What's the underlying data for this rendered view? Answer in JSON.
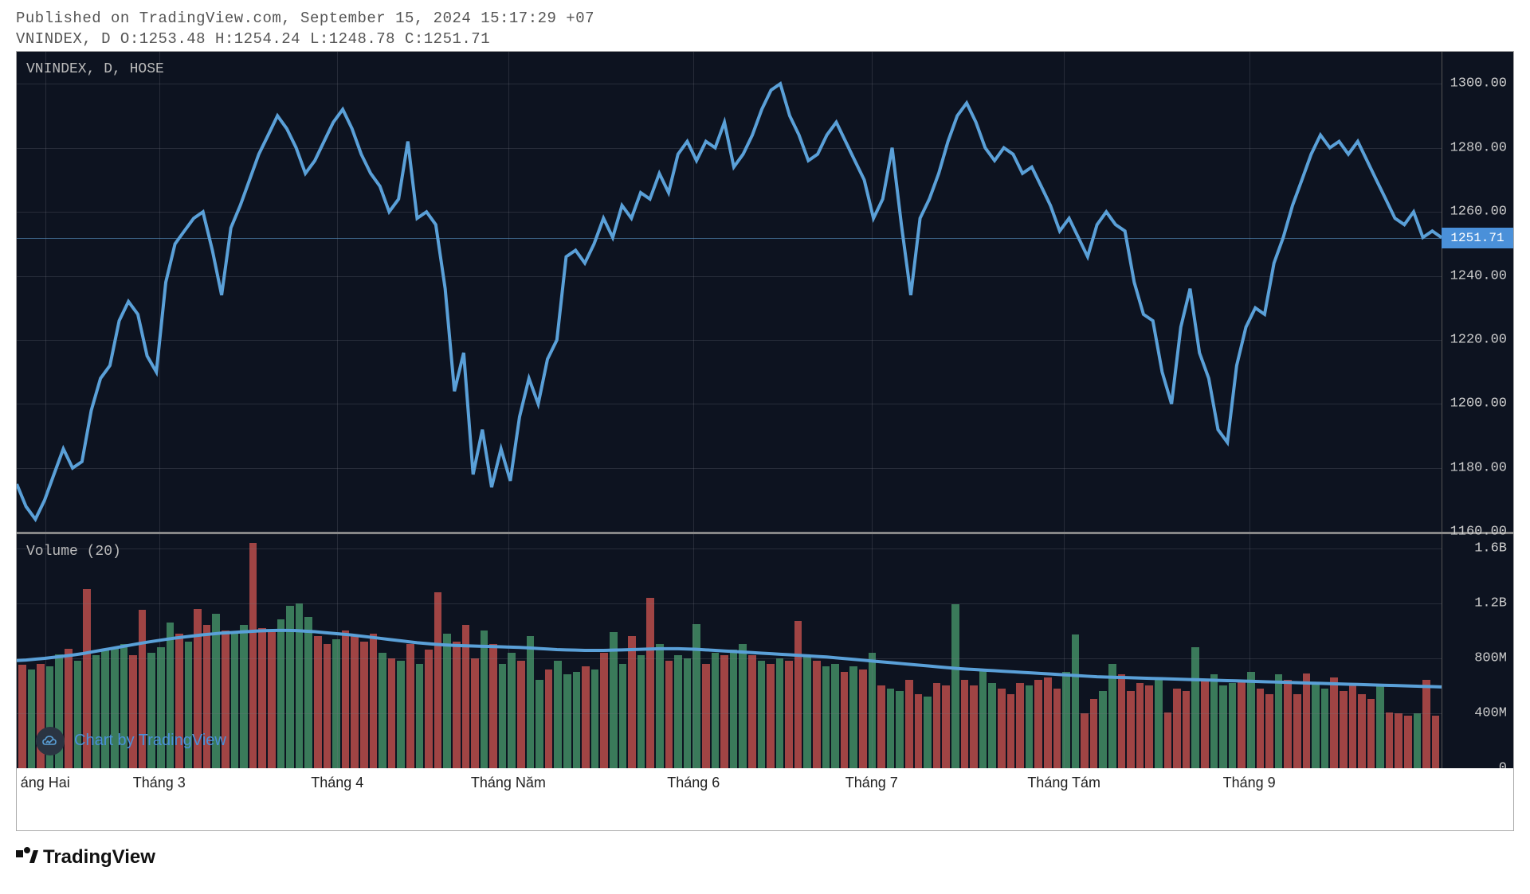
{
  "header": {
    "line1": "Published on TradingView.com, September 15, 2024 15:17:29 +07",
    "line2": "VNINDEX, D O:1253.48 H:1254.24 L:1248.78 C:1251.71"
  },
  "price_chart": {
    "label": "VNINDEX, D, HOSE",
    "type": "line",
    "line_color": "#5aa0d8",
    "line_width": 2,
    "background_color": "#0d1320",
    "grid_color": "rgba(120,120,130,0.25)",
    "ylim": [
      1160,
      1310
    ],
    "yticks": [
      1160,
      1180,
      1200,
      1220,
      1240,
      1260,
      1280,
      1300
    ],
    "ytick_labels": [
      "1160.00",
      "1180.00",
      "1200.00",
      "1220.00",
      "1240.00",
      "1260.00",
      "1280.00",
      "1300.00"
    ],
    "close_badge": {
      "value": "1251.71",
      "bg": "#4a90d9",
      "y": 1251.71
    },
    "data": [
      1175,
      1168,
      1164,
      1170,
      1178,
      1186,
      1180,
      1182,
      1198,
      1208,
      1212,
      1226,
      1232,
      1228,
      1215,
      1210,
      1238,
      1250,
      1254,
      1258,
      1260,
      1248,
      1234,
      1255,
      1262,
      1270,
      1278,
      1284,
      1290,
      1286,
      1280,
      1272,
      1276,
      1282,
      1288,
      1292,
      1286,
      1278,
      1272,
      1268,
      1260,
      1264,
      1282,
      1258,
      1260,
      1256,
      1236,
      1204,
      1216,
      1178,
      1192,
      1174,
      1186,
      1176,
      1196,
      1208,
      1200,
      1214,
      1220,
      1246,
      1248,
      1244,
      1250,
      1258,
      1252,
      1262,
      1258,
      1266,
      1264,
      1272,
      1266,
      1278,
      1282,
      1276,
      1282,
      1280,
      1288,
      1274,
      1278,
      1284,
      1292,
      1298,
      1300,
      1290,
      1284,
      1276,
      1278,
      1284,
      1288,
      1282,
      1276,
      1270,
      1258,
      1264,
      1280,
      1256,
      1234,
      1258,
      1264,
      1272,
      1282,
      1290,
      1294,
      1288,
      1280,
      1276,
      1280,
      1278,
      1272,
      1274,
      1268,
      1262,
      1254,
      1258,
      1252,
      1246,
      1256,
      1260,
      1256,
      1254,
      1238,
      1228,
      1226,
      1210,
      1200,
      1224,
      1236,
      1216,
      1208,
      1192,
      1188,
      1212,
      1224,
      1230,
      1228,
      1244,
      1252,
      1262,
      1270,
      1278,
      1284,
      1280,
      1282,
      1278,
      1282,
      1276,
      1270,
      1264,
      1258,
      1256,
      1260,
      1252,
      1254,
      1252
    ]
  },
  "volume_chart": {
    "label": "Volume (20)",
    "ylim": [
      0,
      1700000000
    ],
    "yticks": [
      0,
      400000000,
      800000000,
      1200000000,
      1600000000
    ],
    "ytick_labels": [
      "0",
      "400M",
      "800M",
      "1.2B",
      "1.6B"
    ],
    "up_color": "#3a7a5a",
    "down_color": "#a04444",
    "ma_color": "#5aa0d8",
    "ma_width": 2.5,
    "bars": [
      {
        "v": 750,
        "d": "down"
      },
      {
        "v": 720,
        "d": "up"
      },
      {
        "v": 760,
        "d": "down"
      },
      {
        "v": 740,
        "d": "up"
      },
      {
        "v": 830,
        "d": "up"
      },
      {
        "v": 870,
        "d": "down"
      },
      {
        "v": 780,
        "d": "up"
      },
      {
        "v": 1300,
        "d": "down"
      },
      {
        "v": 820,
        "d": "up"
      },
      {
        "v": 860,
        "d": "up"
      },
      {
        "v": 880,
        "d": "up"
      },
      {
        "v": 900,
        "d": "up"
      },
      {
        "v": 820,
        "d": "down"
      },
      {
        "v": 1150,
        "d": "down"
      },
      {
        "v": 840,
        "d": "up"
      },
      {
        "v": 880,
        "d": "up"
      },
      {
        "v": 1060,
        "d": "up"
      },
      {
        "v": 980,
        "d": "down"
      },
      {
        "v": 920,
        "d": "up"
      },
      {
        "v": 1160,
        "d": "down"
      },
      {
        "v": 1040,
        "d": "down"
      },
      {
        "v": 1120,
        "d": "up"
      },
      {
        "v": 1000,
        "d": "down"
      },
      {
        "v": 980,
        "d": "up"
      },
      {
        "v": 1040,
        "d": "up"
      },
      {
        "v": 1640,
        "d": "down"
      },
      {
        "v": 1020,
        "d": "down"
      },
      {
        "v": 1000,
        "d": "down"
      },
      {
        "v": 1080,
        "d": "up"
      },
      {
        "v": 1180,
        "d": "up"
      },
      {
        "v": 1200,
        "d": "up"
      },
      {
        "v": 1100,
        "d": "up"
      },
      {
        "v": 960,
        "d": "down"
      },
      {
        "v": 900,
        "d": "down"
      },
      {
        "v": 940,
        "d": "up"
      },
      {
        "v": 1000,
        "d": "down"
      },
      {
        "v": 960,
        "d": "down"
      },
      {
        "v": 920,
        "d": "down"
      },
      {
        "v": 980,
        "d": "down"
      },
      {
        "v": 840,
        "d": "up"
      },
      {
        "v": 800,
        "d": "down"
      },
      {
        "v": 780,
        "d": "up"
      },
      {
        "v": 900,
        "d": "down"
      },
      {
        "v": 760,
        "d": "up"
      },
      {
        "v": 860,
        "d": "down"
      },
      {
        "v": 1280,
        "d": "down"
      },
      {
        "v": 980,
        "d": "up"
      },
      {
        "v": 920,
        "d": "down"
      },
      {
        "v": 1040,
        "d": "down"
      },
      {
        "v": 800,
        "d": "down"
      },
      {
        "v": 1000,
        "d": "up"
      },
      {
        "v": 900,
        "d": "down"
      },
      {
        "v": 760,
        "d": "up"
      },
      {
        "v": 840,
        "d": "up"
      },
      {
        "v": 780,
        "d": "down"
      },
      {
        "v": 960,
        "d": "up"
      },
      {
        "v": 640,
        "d": "up"
      },
      {
        "v": 720,
        "d": "down"
      },
      {
        "v": 780,
        "d": "up"
      },
      {
        "v": 680,
        "d": "up"
      },
      {
        "v": 700,
        "d": "up"
      },
      {
        "v": 740,
        "d": "down"
      },
      {
        "v": 720,
        "d": "up"
      },
      {
        "v": 840,
        "d": "down"
      },
      {
        "v": 990,
        "d": "up"
      },
      {
        "v": 760,
        "d": "up"
      },
      {
        "v": 960,
        "d": "down"
      },
      {
        "v": 820,
        "d": "up"
      },
      {
        "v": 1240,
        "d": "down"
      },
      {
        "v": 900,
        "d": "up"
      },
      {
        "v": 780,
        "d": "down"
      },
      {
        "v": 820,
        "d": "up"
      },
      {
        "v": 800,
        "d": "up"
      },
      {
        "v": 1050,
        "d": "up"
      },
      {
        "v": 760,
        "d": "down"
      },
      {
        "v": 840,
        "d": "up"
      },
      {
        "v": 820,
        "d": "down"
      },
      {
        "v": 860,
        "d": "up"
      },
      {
        "v": 900,
        "d": "up"
      },
      {
        "v": 820,
        "d": "down"
      },
      {
        "v": 780,
        "d": "up"
      },
      {
        "v": 760,
        "d": "down"
      },
      {
        "v": 800,
        "d": "up"
      },
      {
        "v": 780,
        "d": "down"
      },
      {
        "v": 1070,
        "d": "down"
      },
      {
        "v": 820,
        "d": "up"
      },
      {
        "v": 780,
        "d": "down"
      },
      {
        "v": 740,
        "d": "up"
      },
      {
        "v": 760,
        "d": "up"
      },
      {
        "v": 700,
        "d": "down"
      },
      {
        "v": 740,
        "d": "up"
      },
      {
        "v": 720,
        "d": "down"
      },
      {
        "v": 840,
        "d": "up"
      },
      {
        "v": 600,
        "d": "down"
      },
      {
        "v": 580,
        "d": "up"
      },
      {
        "v": 560,
        "d": "up"
      },
      {
        "v": 640,
        "d": "down"
      },
      {
        "v": 540,
        "d": "down"
      },
      {
        "v": 520,
        "d": "up"
      },
      {
        "v": 620,
        "d": "down"
      },
      {
        "v": 600,
        "d": "down"
      },
      {
        "v": 1190,
        "d": "up"
      },
      {
        "v": 640,
        "d": "down"
      },
      {
        "v": 600,
        "d": "down"
      },
      {
        "v": 720,
        "d": "up"
      },
      {
        "v": 620,
        "d": "up"
      },
      {
        "v": 580,
        "d": "down"
      },
      {
        "v": 540,
        "d": "down"
      },
      {
        "v": 620,
        "d": "down"
      },
      {
        "v": 600,
        "d": "up"
      },
      {
        "v": 640,
        "d": "down"
      },
      {
        "v": 660,
        "d": "down"
      },
      {
        "v": 580,
        "d": "down"
      },
      {
        "v": 700,
        "d": "up"
      },
      {
        "v": 970,
        "d": "up"
      },
      {
        "v": 400,
        "d": "down"
      },
      {
        "v": 500,
        "d": "down"
      },
      {
        "v": 560,
        "d": "up"
      },
      {
        "v": 760,
        "d": "up"
      },
      {
        "v": 680,
        "d": "down"
      },
      {
        "v": 560,
        "d": "down"
      },
      {
        "v": 620,
        "d": "down"
      },
      {
        "v": 600,
        "d": "down"
      },
      {
        "v": 660,
        "d": "up"
      },
      {
        "v": 406,
        "d": "down"
      },
      {
        "v": 580,
        "d": "down"
      },
      {
        "v": 560,
        "d": "down"
      },
      {
        "v": 880,
        "d": "up"
      },
      {
        "v": 640,
        "d": "down"
      },
      {
        "v": 680,
        "d": "up"
      },
      {
        "v": 600,
        "d": "up"
      },
      {
        "v": 616,
        "d": "up"
      },
      {
        "v": 644,
        "d": "down"
      },
      {
        "v": 700,
        "d": "up"
      },
      {
        "v": 580,
        "d": "down"
      },
      {
        "v": 540,
        "d": "down"
      },
      {
        "v": 680,
        "d": "up"
      },
      {
        "v": 640,
        "d": "down"
      },
      {
        "v": 535,
        "d": "down"
      },
      {
        "v": 690,
        "d": "down"
      },
      {
        "v": 620,
        "d": "up"
      },
      {
        "v": 580,
        "d": "up"
      },
      {
        "v": 660,
        "d": "down"
      },
      {
        "v": 560,
        "d": "down"
      },
      {
        "v": 620,
        "d": "down"
      },
      {
        "v": 540,
        "d": "down"
      },
      {
        "v": 500,
        "d": "down"
      },
      {
        "v": 600,
        "d": "up"
      },
      {
        "v": 406,
        "d": "down"
      },
      {
        "v": 400,
        "d": "down"
      },
      {
        "v": 380,
        "d": "down"
      },
      {
        "v": 400,
        "d": "up"
      },
      {
        "v": 640,
        "d": "down"
      },
      {
        "v": 380,
        "d": "down"
      }
    ],
    "ma": [
      780,
      784,
      790,
      796,
      804,
      812,
      820,
      830,
      842,
      854,
      866,
      878,
      890,
      902,
      914,
      924,
      934,
      944,
      952,
      960,
      968,
      974,
      980,
      984,
      988,
      992,
      996,
      998,
      1000,
      1000,
      998,
      994,
      990,
      984,
      978,
      972,
      966,
      958,
      950,
      942,
      934,
      926,
      918,
      910,
      904,
      898,
      894,
      890,
      888,
      886,
      884,
      882,
      880,
      878,
      876,
      872,
      868,
      864,
      860,
      858,
      856,
      854,
      854,
      854,
      856,
      858,
      860,
      862,
      864,
      866,
      866,
      866,
      864,
      862,
      858,
      854,
      850,
      846,
      842,
      838,
      834,
      830,
      826,
      822,
      818,
      814,
      810,
      806,
      800,
      794,
      788,
      782,
      776,
      770,
      764,
      758,
      752,
      746,
      740,
      734,
      728,
      722,
      718,
      714,
      710,
      706,
      702,
      698,
      694,
      690,
      686,
      682,
      678,
      674,
      670,
      666,
      662,
      660,
      658,
      656,
      654,
      652,
      650,
      648,
      646,
      644,
      642,
      640,
      638,
      636,
      634,
      632,
      630,
      628,
      626,
      624,
      622,
      620,
      618,
      616,
      614,
      612,
      610,
      608,
      606,
      604,
      602,
      600,
      598,
      596,
      594,
      592,
      590,
      588
    ]
  },
  "xaxis": {
    "labels": [
      {
        "pos": 0.02,
        "text": "áng Hai"
      },
      {
        "pos": 0.1,
        "text": "Tháng 3"
      },
      {
        "pos": 0.225,
        "text": "Tháng 4"
      },
      {
        "pos": 0.345,
        "text": "Tháng Năm"
      },
      {
        "pos": 0.475,
        "text": "Tháng 6"
      },
      {
        "pos": 0.6,
        "text": "Tháng 7"
      },
      {
        "pos": 0.735,
        "text": "Tháng Tám"
      },
      {
        "pos": 0.865,
        "text": "Tháng 9"
      }
    ]
  },
  "attribution": {
    "text": "Chart by TradingView",
    "icon": "cloud-chart-icon"
  },
  "footer": {
    "logo_text": "TradingView"
  }
}
